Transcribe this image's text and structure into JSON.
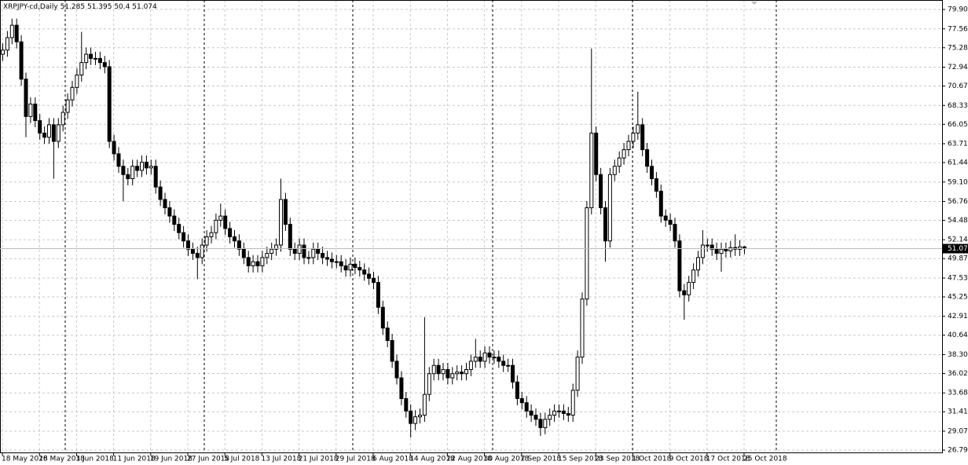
{
  "chart_data": {
    "type": "candlestick",
    "title": "XRPJPY-cd,Daily",
    "categories": [
      "18 May 2018",
      null,
      null,
      null,
      null,
      null,
      null,
      null,
      "26 May 2018",
      null,
      null,
      null,
      null,
      null,
      null,
      null,
      "3 Jun 2018",
      null,
      null,
      null,
      null,
      null,
      null,
      null,
      "11 Jun 2018",
      null,
      null,
      null,
      null,
      null,
      null,
      null,
      "19 Jun 2018",
      null,
      null,
      null,
      null,
      null,
      null,
      null,
      "27 Jun 2018",
      null,
      null,
      null,
      null,
      null,
      null,
      null,
      "5 Jul 2018",
      null,
      null,
      null,
      null,
      null,
      null,
      null,
      "13 Jul 2018",
      null,
      null,
      null,
      null,
      null,
      null,
      null,
      "21 Jul 2018",
      null,
      null,
      null,
      null,
      null,
      null,
      null,
      "29 Jul 2018",
      null,
      null,
      null,
      null,
      null,
      null,
      null,
      "6 Aug 2018",
      null,
      null,
      null,
      null,
      null,
      null,
      null,
      "14 Aug 2018",
      null,
      null,
      null,
      null,
      null,
      null,
      null,
      "22 Aug 2018",
      null,
      null,
      null,
      null,
      null,
      null,
      null,
      "30 Aug 2018",
      null,
      null,
      null,
      null,
      null,
      null,
      null,
      "7 Sep 2018",
      null,
      null,
      null,
      null,
      null,
      null,
      null,
      "15 Sep 2018",
      null,
      null,
      null,
      null,
      null,
      null,
      null,
      "23 Sep 2018",
      null,
      null,
      null,
      null,
      null,
      null,
      null,
      "1 Oct 2018",
      null,
      null,
      null,
      null,
      null,
      null,
      null,
      "9 Oct 2018",
      null,
      null,
      null,
      null,
      null,
      null,
      null,
      "17 Oct 2018",
      null,
      null,
      null,
      null,
      null,
      null,
      null,
      "25 Oct 2018"
    ],
    "open": [
      74.5,
      75,
      76.5,
      78,
      76,
      71.5,
      67,
      68.5,
      66.5,
      65,
      64.5,
      66,
      64,
      66,
      67.5,
      69,
      70.5,
      72,
      73.5,
      74.5,
      74,
      74,
      73.5,
      73,
      64,
      62.5,
      61,
      60,
      59.5,
      61,
      60.5,
      61.5,
      60.8,
      61,
      58.5,
      57,
      56,
      55,
      54,
      53,
      52,
      51,
      50.5,
      50,
      51.5,
      52.5,
      53,
      54.5,
      55,
      53.5,
      52.5,
      52,
      51,
      50,
      49,
      49.5,
      49,
      50,
      50.5,
      51,
      51.5,
      57,
      54,
      51,
      50.5,
      51.5,
      50,
      50,
      51,
      50.5,
      50,
      49.8,
      49.5,
      49.5,
      49,
      48.5,
      49.2,
      48.8,
      48.5,
      48,
      47.5,
      47,
      44,
      41.5,
      40,
      37.5,
      35.5,
      33,
      31.5,
      30,
      30.8,
      31,
      33.5,
      36,
      37,
      36,
      36.5,
      35.5,
      36,
      36.2,
      36,
      36.5,
      37.5,
      38,
      37.5,
      38.5,
      38,
      38,
      37.5,
      37,
      37,
      35,
      33,
      32.5,
      31.5,
      31,
      30.5,
      29.5,
      30.5,
      31,
      31.5,
      31.5,
      31.2,
      31,
      34,
      38,
      45,
      56,
      65,
      60,
      56,
      52,
      60,
      61,
      62,
      63,
      64,
      65,
      66,
      63,
      61,
      59.5,
      58,
      55,
      54.5,
      54,
      52,
      46,
      45.5,
      47,
      48.5,
      50,
      51.5,
      51.5,
      51,
      50.5,
      51,
      50.8,
      51.2,
      51,
      51.285
    ],
    "high": [
      75.8,
      77.3,
      78.8,
      78.8,
      76.8,
      72.3,
      69.3,
      69.3,
      67.3,
      65.8,
      66.8,
      66.8,
      66.8,
      68.3,
      69.8,
      71.3,
      72.8,
      77.2,
      75.3,
      75.3,
      74.8,
      74.8,
      74.3,
      73.8,
      64.8,
      63.3,
      61.8,
      60.8,
      61.8,
      61.8,
      62.3,
      62.3,
      61.8,
      61.8,
      59.3,
      57.8,
      56.8,
      55.8,
      54.8,
      53.8,
      52.8,
      51.8,
      51.3,
      52.3,
      53.3,
      53.8,
      55.3,
      56.5,
      55.8,
      54.3,
      53.3,
      52.8,
      51.8,
      50.8,
      50.3,
      50.3,
      50.8,
      51.3,
      51.8,
      52.3,
      59.5,
      57.8,
      54.8,
      51.8,
      52.3,
      52.3,
      50.8,
      51.8,
      51.8,
      51.3,
      50.8,
      50.6,
      50.3,
      50.3,
      49.8,
      50,
      50,
      49.6,
      49.3,
      48.8,
      48.3,
      47.8,
      44.8,
      42.3,
      40.8,
      38.3,
      36.3,
      33.8,
      32.3,
      31.6,
      31.8,
      42.8,
      36.8,
      37.8,
      37.8,
      37.3,
      37.3,
      36.8,
      37,
      37,
      37.3,
      38.3,
      40.2,
      38.8,
      39.3,
      39.3,
      38.8,
      38.8,
      38.3,
      37.8,
      37.8,
      35.8,
      33.8,
      33.3,
      32.3,
      31.8,
      31.3,
      31.3,
      31.8,
      32.3,
      32.3,
      32.3,
      32,
      34.8,
      38.8,
      45.8,
      56.8,
      75.2,
      65.8,
      60.8,
      56.8,
      60.8,
      61.8,
      62.8,
      63.8,
      64.8,
      65.8,
      70,
      66.8,
      63.8,
      61.8,
      60.3,
      58.8,
      55.8,
      55.3,
      54.8,
      52.8,
      46.8,
      47.8,
      49.3,
      50.8,
      53.3,
      52.3,
      52.3,
      51.8,
      51.8,
      51.8,
      52,
      52.8,
      52.1,
      51.395
    ],
    "low": [
      73.7,
      74.2,
      75.7,
      75.2,
      70.7,
      64.5,
      66.2,
      65.7,
      64.2,
      63.7,
      63.7,
      59.5,
      63.2,
      65.2,
      66.7,
      68.2,
      69.7,
      71.2,
      72.7,
      73.2,
      73.2,
      72.7,
      72.2,
      63.2,
      61.7,
      60.2,
      56.8,
      58.7,
      58.7,
      59.7,
      59.7,
      60,
      60,
      57.7,
      56.2,
      55.2,
      54.2,
      53.2,
      52.2,
      51.2,
      50.2,
      49.7,
      47.4,
      49.2,
      50.7,
      51.7,
      52.2,
      53.7,
      52.7,
      51.7,
      51.2,
      50.2,
      49.2,
      48.2,
      48.2,
      48.2,
      48.2,
      49.2,
      49.7,
      50.2,
      50.7,
      53.2,
      50.2,
      49.7,
      49.7,
      49.2,
      49.2,
      49.2,
      49.7,
      49.2,
      49,
      48.7,
      48.7,
      48.2,
      47.7,
      47.7,
      48,
      47.7,
      47.2,
      46.7,
      46.2,
      43.2,
      40.7,
      39.2,
      36.7,
      34.7,
      32.2,
      30.7,
      28.3,
      29.2,
      30,
      30.2,
      32.7,
      35.2,
      35.2,
      35.2,
      34.7,
      34.7,
      35.2,
      35.2,
      35.2,
      35.7,
      36.7,
      36.7,
      36.7,
      37.2,
      37.2,
      36.7,
      36.2,
      36.2,
      34.2,
      32.2,
      31.7,
      30.7,
      30.2,
      29.7,
      28.5,
      28.7,
      29.7,
      30.2,
      30.7,
      30.4,
      30.2,
      30.2,
      33.2,
      37.2,
      44.2,
      55.2,
      59.2,
      55.2,
      49.5,
      51.2,
      59.2,
      60.2,
      61.2,
      62.2,
      63.2,
      64.2,
      62.2,
      60.2,
      58.7,
      57.2,
      54.2,
      53.7,
      53.2,
      51.2,
      45.2,
      42.5,
      44.7,
      46.2,
      47.7,
      49.2,
      50.7,
      50.2,
      49.7,
      48.3,
      50,
      50,
      50.2,
      50.2,
      50.4
    ],
    "close": [
      75,
      76.5,
      78,
      76,
      71.5,
      67,
      68.5,
      66.5,
      65,
      64.5,
      66,
      64,
      66,
      67.5,
      69,
      70.5,
      72,
      73.5,
      74.5,
      74,
      74,
      73.5,
      73,
      64,
      62.5,
      61,
      60,
      59.5,
      61,
      60.5,
      61.5,
      60.8,
      61,
      58.5,
      57,
      56,
      55,
      54,
      53,
      52,
      51,
      50.5,
      50,
      51.5,
      52.5,
      53,
      54.5,
      55,
      53.5,
      52.5,
      52,
      51,
      50,
      49,
      49.5,
      49,
      50,
      50.5,
      51,
      51.5,
      57,
      54,
      51,
      50.5,
      51.5,
      50,
      50,
      51,
      50.5,
      50,
      49.8,
      49.5,
      49.5,
      49,
      48.5,
      49.2,
      48.8,
      48.5,
      48,
      47.5,
      47,
      44,
      41.5,
      40,
      37.5,
      35.5,
      33,
      31.5,
      30,
      30.8,
      31,
      33.5,
      36,
      37,
      36,
      36.5,
      35.5,
      36,
      36.2,
      36,
      36.5,
      37.5,
      38,
      37.5,
      38.5,
      38,
      38,
      37.5,
      37,
      37,
      35,
      33,
      32.5,
      31.5,
      31,
      30.5,
      29.5,
      30.5,
      31,
      31.5,
      31.5,
      31.2,
      31,
      34,
      38,
      45,
      56,
      65,
      60,
      56,
      52,
      60,
      61,
      62,
      63,
      64,
      65,
      66,
      63,
      61,
      59.5,
      58,
      55,
      54.5,
      54,
      52,
      46,
      45.5,
      47,
      48.5,
      50,
      51.5,
      51.5,
      51,
      50.5,
      51,
      50.8,
      51.2,
      51,
      51.285,
      51.074
    ],
    "up_color": "#ffffff",
    "down_color": "#000000",
    "ylim": [
      26.51,
      81.04
    ],
    "yticks": [
      {
        "value": 79.9,
        "label": "79.900"
      },
      {
        "value": 77.56,
        "label": "77.560"
      },
      75.285,
      72.945,
      {
        "value": 70.67,
        "label": "70.670"
      },
      {
        "value": 68.33,
        "label": "68.330"
      },
      66.055,
      63.715,
      {
        "value": 61.44,
        "label": "61.440"
      },
      {
        "value": 59.1,
        "label": "59.100"
      },
      {
        "value": 56.76,
        "label": "56.760"
      },
      54.485,
      52.145,
      {
        "value": 49.87,
        "label": "49.870"
      },
      {
        "value": 47.53,
        "label": "47.530"
      },
      45.255,
      42.915,
      {
        "value": 40.64,
        "label": "40.640"
      },
      {
        "value": 38.3,
        "label": "38.300"
      },
      36.025,
      33.685,
      {
        "value": 31.41,
        "label": "31.410"
      },
      {
        "value": 29.07,
        "label": "29.070"
      },
      26.795
    ],
    "grid": true
  }
}
